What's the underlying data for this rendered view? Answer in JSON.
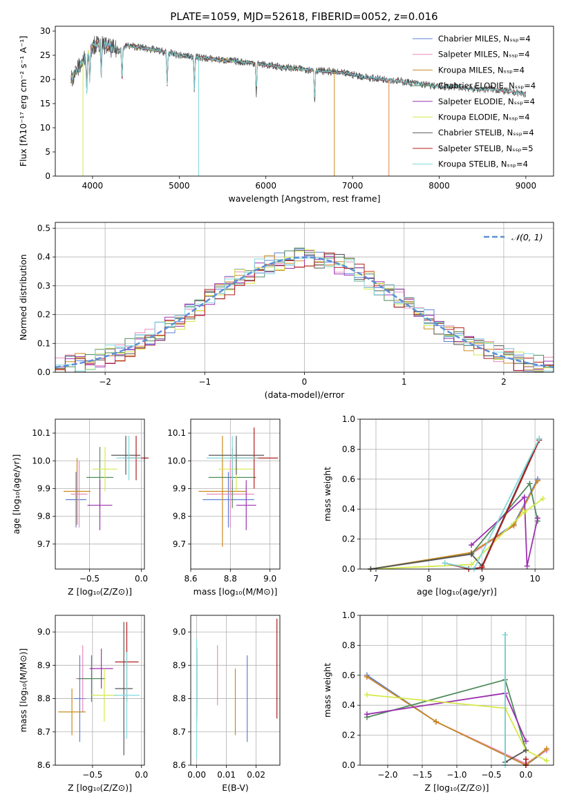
{
  "figure": {
    "title": "PLATE=1059, MJD=52618, FIBERID=0052, z=0.016"
  },
  "chart_data": [
    {
      "id": "spectrum",
      "type": "line",
      "title": "PLATE=1059, MJD=52618, FIBERID=0052, z=0.016",
      "xlabel": "wavelength [Angstrom, rest frame]",
      "ylabel": "Flux [fλ10⁻¹⁷ erg cm⁻² s⁻¹ A⁻¹]",
      "xlim": [
        3570,
        9320
      ],
      "ylim": [
        0,
        31
      ],
      "xticks": [
        4000,
        5000,
        6000,
        7000,
        8000,
        9000
      ],
      "yticks": [
        0,
        5,
        10,
        15,
        20,
        25,
        30
      ],
      "grid": false,
      "legend": "top-right",
      "series": [
        {
          "name": "Chabrier MILES, Nₛₛₚ=4",
          "color": "#5b7fd6"
        },
        {
          "name": "Salpeter MILES, Nₛₛₚ=4",
          "color": "#e88aba"
        },
        {
          "name": "Kroupa MILES, Nₛₛₚ=4",
          "color": "#c98a1e"
        },
        {
          "name": "Chabrier ELODIE, Nₛₛₚ=4",
          "color": "#4f8a5a"
        },
        {
          "name": "Salpeter ELODIE, Nₛₛₚ=4",
          "color": "#9b30b0"
        },
        {
          "name": "Kroupa ELODIE, Nₛₛₚ=4",
          "color": "#d5e84a"
        },
        {
          "name": "Chabrier STELIB, Nₛₛₚ=4",
          "color": "#555555"
        },
        {
          "name": "Salpeter STELIB, Nₛₛₚ=5",
          "color": "#b01c1c"
        },
        {
          "name": "Kroupa STELIB, Nₛₛₚ=4",
          "color": "#7fd8dc"
        }
      ],
      "continuum": {
        "x": [
          3750,
          3820,
          3900,
          4000,
          4100,
          4200,
          4300,
          4400,
          4600,
          4800,
          5000,
          5200,
          5500,
          5800,
          6000,
          6200,
          6500,
          6800,
          7000,
          7200,
          7400,
          7600,
          7800,
          8000,
          8200,
          8400,
          8600,
          8800,
          9000
        ],
        "y": [
          20,
          22,
          24,
          27,
          27.5,
          26.5,
          26,
          27,
          26.5,
          25.8,
          25,
          24.6,
          24,
          23.5,
          23,
          22.5,
          22,
          21.5,
          21,
          20.3,
          20,
          19.5,
          19,
          18.5,
          18.5,
          18,
          18,
          17.5,
          17
        ]
      },
      "series_end_x": {
        "MILES": 7400,
        "ELODIE": 6800,
        "STELIB": 9000
      }
    },
    {
      "id": "residuals",
      "type": "line",
      "xlabel": "(data-model)/error",
      "ylabel": "Normed distribution",
      "xlim": [
        -2.5,
        2.5
      ],
      "ylim": [
        0,
        0.52
      ],
      "xticks": [
        -2,
        -1,
        0,
        1,
        2
      ],
      "yticks": [
        0.0,
        0.1,
        0.2,
        0.3,
        0.4,
        0.5
      ],
      "grid": true,
      "legend": "top-right",
      "legend_label": "𝒩(0, 1)",
      "gaussian_color": "#5b8fd6",
      "bins": {
        "start": -2.5,
        "width": 0.1,
        "count": 50
      }
    },
    {
      "id": "age-vs-Z",
      "type": "scatter",
      "xlabel": "Z [log₁₀(Z/Z⊙)]",
      "ylabel": "age  [log₁₀(age/yr)]",
      "xlim": [
        -0.83,
        0.03
      ],
      "ylim": [
        9.61,
        10.15
      ],
      "xticks": [
        -0.5,
        0.0
      ],
      "yticks": [
        9.7,
        9.8,
        9.9,
        10.0,
        10.1
      ],
      "grid": true,
      "points": [
        {
          "x": -0.63,
          "y": 9.86,
          "xerr": 0.1,
          "yerr": 0.1,
          "color": "#5b7fd6"
        },
        {
          "x": -0.6,
          "y": 9.88,
          "xerr": 0.08,
          "yerr": 0.12,
          "color": "#e88aba"
        },
        {
          "x": -0.62,
          "y": 9.89,
          "xerr": 0.13,
          "yerr": 0.12,
          "color": "#c98a1e"
        },
        {
          "x": -0.4,
          "y": 9.94,
          "xerr": 0.13,
          "yerr": 0.11,
          "color": "#4f8a5a"
        },
        {
          "x": -0.4,
          "y": 9.84,
          "xerr": 0.12,
          "yerr": 0.09,
          "color": "#9b30b0"
        },
        {
          "x": -0.35,
          "y": 9.97,
          "xerr": 0.12,
          "yerr": 0.08,
          "color": "#d5e84a"
        },
        {
          "x": -0.15,
          "y": 10.02,
          "xerr": 0.14,
          "yerr": 0.07,
          "color": "#555555"
        },
        {
          "x": -0.05,
          "y": 10.01,
          "xerr": 0.12,
          "yerr": 0.08,
          "color": "#b01c1c"
        },
        {
          "x": -0.12,
          "y": 10.01,
          "xerr": 0.12,
          "yerr": 0.08,
          "color": "#7fd8dc"
        }
      ]
    },
    {
      "id": "age-vs-mass",
      "type": "scatter",
      "xlabel": "mass [log₁₀(M/M⊙)]",
      "ylabel": "",
      "xlim": [
        8.6,
        9.05
      ],
      "ylim": [
        9.61,
        10.15
      ],
      "xticks": [
        8.6,
        8.8,
        9.0
      ],
      "yticks": [
        9.7,
        9.8,
        9.9,
        10.0,
        10.1
      ],
      "grid": true,
      "points": [
        {
          "x": 8.79,
          "y": 9.86,
          "xerr": 0.13,
          "yerr": 0.1,
          "color": "#5b7fd6"
        },
        {
          "x": 8.8,
          "y": 9.88,
          "xerr": 0.12,
          "yerr": 0.12,
          "color": "#e88aba"
        },
        {
          "x": 8.76,
          "y": 9.89,
          "xerr": 0.12,
          "yerr": 0.2,
          "color": "#c98a1e"
        },
        {
          "x": 8.81,
          "y": 9.94,
          "xerr": 0.12,
          "yerr": 0.11,
          "color": "#4f8a5a"
        },
        {
          "x": 8.88,
          "y": 9.84,
          "xerr": 0.05,
          "yerr": 0.09,
          "color": "#9b30b0"
        },
        {
          "x": 8.83,
          "y": 9.97,
          "xerr": 0.09,
          "yerr": 0.08,
          "color": "#d5e84a"
        },
        {
          "x": 8.83,
          "y": 10.02,
          "xerr": 0.14,
          "yerr": 0.07,
          "color": "#555555"
        },
        {
          "x": 8.92,
          "y": 10.01,
          "xerr": 0.12,
          "yerr": 0.11,
          "color": "#b01c1c"
        },
        {
          "x": 8.81,
          "y": 10.01,
          "xerr": 0.13,
          "yerr": 0.08,
          "color": "#7fd8dc"
        }
      ]
    },
    {
      "id": "massweight-vs-age",
      "type": "line",
      "xlabel": "age  [log₁₀(age/yr)]",
      "ylabel": "mass weight",
      "xlim": [
        6.7,
        10.35
      ],
      "ylim": [
        0,
        1.0
      ],
      "xticks": [
        7,
        8,
        9,
        10
      ],
      "yticks": [
        0.0,
        0.2,
        0.4,
        0.6,
        0.8,
        1.0
      ],
      "grid": true,
      "series": [
        {
          "color": "#5b7fd6",
          "x": [
            6.9,
            8.8,
            9.6,
            10.05
          ],
          "y": [
            0.0,
            0.1,
            0.3,
            0.6
          ]
        },
        {
          "color": "#e88aba",
          "x": [
            6.9,
            8.8,
            9.6,
            10.05
          ],
          "y": [
            0.0,
            0.1,
            0.29,
            0.59
          ]
        },
        {
          "color": "#c98a1e",
          "x": [
            6.9,
            8.8,
            9.6,
            10.05
          ],
          "y": [
            0.0,
            0.11,
            0.29,
            0.59
          ]
        },
        {
          "color": "#4f8a5a",
          "x": [
            6.9,
            8.8,
            9.9,
            10.05
          ],
          "y": [
            0.0,
            0.1,
            0.57,
            0.32
          ]
        },
        {
          "color": "#9b30b0",
          "x": [
            8.8,
            9.8,
            9.85,
            10.05
          ],
          "y": [
            0.16,
            0.48,
            0.02,
            0.34
          ]
        },
        {
          "color": "#d5e84a",
          "x": [
            6.9,
            8.8,
            9.8,
            10.15
          ],
          "y": [
            0.0,
            0.03,
            0.38,
            0.47
          ]
        },
        {
          "color": "#555555",
          "x": [
            6.9,
            8.8,
            9.0,
            10.08
          ],
          "y": [
            0.0,
            0.1,
            0.02,
            0.87
          ]
        },
        {
          "color": "#b01c1c",
          "x": [
            8.3,
            8.75,
            9.0,
            10.08
          ],
          "y": [
            0.04,
            0.0,
            0.01,
            0.86
          ]
        },
        {
          "color": "#7fd8dc",
          "x": [
            8.3,
            8.85,
            10.08
          ],
          "y": [
            0.04,
            0.0,
            0.87
          ]
        }
      ]
    },
    {
      "id": "mass-vs-Z",
      "type": "scatter",
      "xlabel": "Z [log₁₀(Z/Z⊙)]",
      "ylabel": "mass [log₁₀(M/M⊙)]",
      "xlim": [
        -0.88,
        0.03
      ],
      "ylim": [
        8.6,
        9.05
      ],
      "xticks": [
        -0.5,
        0.0
      ],
      "yticks": [
        8.6,
        8.7,
        8.8,
        8.9,
        9.0
      ],
      "grid": true,
      "points": [
        {
          "x": -0.63,
          "y": 8.8,
          "xerr": 0.06,
          "yerr": 0.13,
          "color": "#5b7fd6"
        },
        {
          "x": -0.6,
          "y": 8.86,
          "xerr": 0.07,
          "yerr": 0.1,
          "color": "#e88aba"
        },
        {
          "x": -0.71,
          "y": 8.76,
          "xerr": 0.14,
          "yerr": 0.07,
          "color": "#c98a1e"
        },
        {
          "x": -0.51,
          "y": 8.86,
          "xerr": 0.14,
          "yerr": 0.07,
          "color": "#4f8a5a"
        },
        {
          "x": -0.41,
          "y": 8.89,
          "xerr": 0.12,
          "yerr": 0.06,
          "color": "#9b30b0"
        },
        {
          "x": -0.38,
          "y": 8.81,
          "xerr": 0.13,
          "yerr": 0.08,
          "color": "#d5e84a"
        },
        {
          "x": -0.18,
          "y": 8.83,
          "xerr": 0.09,
          "yerr": 0.2,
          "color": "#555555"
        },
        {
          "x": -0.15,
          "y": 8.91,
          "xerr": 0.12,
          "yerr": 0.12,
          "color": "#b01c1c"
        },
        {
          "x": -0.15,
          "y": 8.81,
          "xerr": 0.13,
          "yerr": 0.13,
          "color": "#7fd8dc"
        }
      ]
    },
    {
      "id": "mass-vs-EBV",
      "type": "scatter",
      "xlabel": "E(B-V)",
      "ylabel": "",
      "xlim": [
        -0.002,
        0.028
      ],
      "ylim": [
        8.6,
        9.05
      ],
      "xticks": [
        0.0,
        0.01,
        0.02
      ],
      "yticks": [
        8.6,
        8.7,
        8.8,
        8.9,
        9.0
      ],
      "grid": true,
      "points": [
        {
          "x": 0.017,
          "y": 8.8,
          "xerr": 0,
          "yerr": 0.13,
          "color": "#5b7fd6"
        },
        {
          "x": 0.007,
          "y": 8.87,
          "xerr": 0,
          "yerr": 0.09,
          "color": "#e88aba"
        },
        {
          "x": 0.013,
          "y": 8.79,
          "xerr": 0,
          "yerr": 0.1,
          "color": "#c98a1e"
        },
        {
          "x": 0.0,
          "y": 8.84,
          "xerr": 0,
          "yerr": 0.11,
          "color": "#4f8a5a"
        },
        {
          "x": 0.0,
          "y": 8.86,
          "xerr": 0,
          "yerr": 0.09,
          "color": "#9b30b0"
        },
        {
          "x": 0.0,
          "y": 8.85,
          "xerr": 0,
          "yerr": 0.1,
          "color": "#555555"
        },
        {
          "x": 0.027,
          "y": 8.89,
          "xerr": 0,
          "yerr": 0.15,
          "color": "#b01c1c"
        },
        {
          "x": 0.0,
          "y": 8.8,
          "xerr": 0,
          "yerr": 0.18,
          "color": "#7fd8dc"
        }
      ]
    },
    {
      "id": "massweight-vs-Z",
      "type": "line",
      "xlabel": "Z [log₁₀(Z/Z⊙)]",
      "ylabel": "mass weight",
      "xlim": [
        -2.4,
        0.4
      ],
      "ylim": [
        0,
        1.0
      ],
      "xticks": [
        -2.0,
        -1.5,
        -1.0,
        -0.5,
        0.0
      ],
      "yticks": [
        0.0,
        0.2,
        0.4,
        0.6,
        0.8,
        1.0
      ],
      "grid": true,
      "series": [
        {
          "color": "#5b7fd6",
          "x": [
            -2.3,
            -1.3,
            0.0,
            0.3
          ],
          "y": [
            0.6,
            0.29,
            0.0,
            0.1
          ]
        },
        {
          "color": "#e88aba",
          "x": [
            -2.3,
            -1.3,
            0.0,
            0.3
          ],
          "y": [
            0.59,
            0.29,
            0.01,
            0.1
          ]
        },
        {
          "color": "#c98a1e",
          "x": [
            -2.3,
            -1.3,
            0.0,
            0.3
          ],
          "y": [
            0.59,
            0.29,
            0.0,
            0.11
          ]
        },
        {
          "color": "#4f8a5a",
          "x": [
            -2.3,
            -0.3,
            0.0
          ],
          "y": [
            0.32,
            0.57,
            0.1
          ]
        },
        {
          "color": "#9b30b0",
          "x": [
            -2.3,
            -0.3,
            0.0
          ],
          "y": [
            0.34,
            0.48,
            0.16
          ]
        },
        {
          "color": "#d5e84a",
          "x": [
            -2.3,
            -0.3,
            0.0,
            0.3
          ],
          "y": [
            0.47,
            0.38,
            0.1,
            0.03
          ]
        },
        {
          "color": "#555555",
          "x": [
            -0.3,
            -0.3,
            0.0
          ],
          "y": [
            0.87,
            0.02,
            0.1
          ]
        },
        {
          "color": "#b01c1c",
          "x": [
            0.0,
            0.0
          ],
          "y": [
            0.0,
            0.04
          ]
        },
        {
          "color": "#7fd8dc",
          "x": [
            -0.3,
            -0.3
          ],
          "y": [
            0.0,
            0.87
          ]
        }
      ]
    }
  ]
}
